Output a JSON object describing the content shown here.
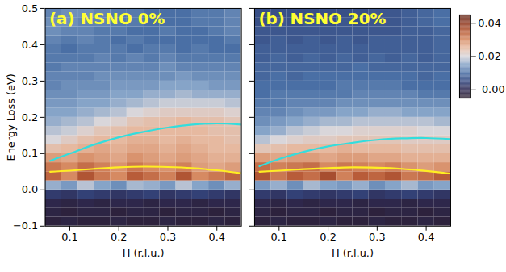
{
  "chart_data": [
    {
      "type": "heatmap",
      "title": "(a) NSNO 0%",
      "x_label": "H (r.l.u.)",
      "y_label": "Energy Loss (eV)",
      "xlim": [
        0.05,
        0.45
      ],
      "ylim": [
        -0.1,
        0.5
      ],
      "xticks": [
        0.1,
        0.2,
        0.3,
        0.4
      ],
      "yticks": [
        {
          "value": -0.1,
          "label": "−0.1"
        },
        {
          "value": 0,
          "label": "0.0"
        },
        0.1,
        0.2,
        0.3,
        0.4,
        0.5
      ],
      "h_bins": [
        0.05,
        0.0833,
        0.1167,
        0.15,
        0.1833,
        0.2167,
        0.25,
        0.2833,
        0.3167,
        0.35,
        0.3833,
        0.4167,
        0.45
      ],
      "energy_bins": [
        -0.1,
        -0.075,
        -0.05,
        -0.025,
        0,
        0.025,
        0.05,
        0.075,
        0.1,
        0.125,
        0.15,
        0.175,
        0.2,
        0.225,
        0.25,
        0.275,
        0.3,
        0.325,
        0.35,
        0.375,
        0.4,
        0.425,
        0.45,
        0.475,
        0.5
      ],
      "cells": [
        [
          -0.003,
          -0.002,
          -0.003,
          -0.003,
          -0.002,
          -0.003,
          -0.003,
          -0.002,
          -0.003,
          -0.003,
          -0.002,
          -0.003
        ],
        [
          -0.002,
          -0.003,
          -0.002,
          -0.002,
          -0.003,
          -0.002,
          -0.002,
          -0.003,
          -0.002,
          -0.002,
          -0.003,
          -0.002
        ],
        [
          -0.001,
          -0.002,
          -0.001,
          -0.002,
          -0.001,
          -0.001,
          -0.002,
          -0.001,
          -0.001,
          -0.002,
          -0.001,
          -0.001
        ],
        [
          0.003,
          0.002,
          0.004,
          0.003,
          0.002,
          0.003,
          0.004,
          0.002,
          0.003,
          0.004,
          0.003,
          0.002
        ],
        [
          0.016,
          0.014,
          0.018,
          0.015,
          0.013,
          0.017,
          0.016,
          0.014,
          0.018,
          0.015,
          0.013,
          0.016
        ],
        [
          0.034,
          0.03,
          0.036,
          0.032,
          0.03,
          0.035,
          0.033,
          0.031,
          0.036,
          0.03,
          0.032,
          0.034
        ],
        [
          0.032,
          0.03,
          0.033,
          0.031,
          0.029,
          0.032,
          0.03,
          0.029,
          0.031,
          0.028,
          0.027,
          0.028
        ],
        [
          0.028,
          0.027,
          0.029,
          0.028,
          0.027,
          0.029,
          0.028,
          0.027,
          0.028,
          0.027,
          0.026,
          0.026
        ],
        [
          0.024,
          0.025,
          0.026,
          0.027,
          0.026,
          0.027,
          0.027,
          0.026,
          0.027,
          0.026,
          0.025,
          0.025
        ],
        [
          0.02,
          0.022,
          0.024,
          0.025,
          0.025,
          0.026,
          0.026,
          0.025,
          0.026,
          0.025,
          0.025,
          0.024
        ],
        [
          0.018,
          0.019,
          0.021,
          0.023,
          0.024,
          0.025,
          0.025,
          0.025,
          0.025,
          0.025,
          0.024,
          0.024
        ],
        [
          0.016,
          0.017,
          0.018,
          0.02,
          0.021,
          0.023,
          0.024,
          0.024,
          0.025,
          0.024,
          0.024,
          0.023
        ],
        [
          0.015,
          0.015,
          0.016,
          0.017,
          0.018,
          0.02,
          0.021,
          0.022,
          0.022,
          0.022,
          0.022,
          0.021
        ],
        [
          0.014,
          0.014,
          0.015,
          0.015,
          0.016,
          0.017,
          0.018,
          0.019,
          0.019,
          0.019,
          0.019,
          0.018
        ],
        [
          0.013,
          0.013,
          0.014,
          0.014,
          0.015,
          0.015,
          0.016,
          0.016,
          0.017,
          0.016,
          0.016,
          0.016
        ],
        [
          0.012,
          0.013,
          0.013,
          0.013,
          0.014,
          0.014,
          0.014,
          0.015,
          0.015,
          0.015,
          0.014,
          0.014
        ],
        [
          0.012,
          0.012,
          0.012,
          0.013,
          0.013,
          0.013,
          0.013,
          0.013,
          0.014,
          0.013,
          0.013,
          0.013
        ],
        [
          0.011,
          0.012,
          0.012,
          0.012,
          0.012,
          0.012,
          0.012,
          0.013,
          0.012,
          0.012,
          0.012,
          0.012
        ],
        [
          0.011,
          0.011,
          0.011,
          0.012,
          0.011,
          0.012,
          0.011,
          0.012,
          0.011,
          0.011,
          0.011,
          0.011
        ],
        [
          0.011,
          0.01,
          0.011,
          0.011,
          0.011,
          0.01,
          0.011,
          0.011,
          0.01,
          0.011,
          0.01,
          0.01
        ],
        [
          0.012,
          0.011,
          0.012,
          0.011,
          0.01,
          0.011,
          0.01,
          0.01,
          0.01,
          0.01,
          0.01,
          0.011
        ],
        [
          0.013,
          0.012,
          0.012,
          0.011,
          0.011,
          0.01,
          0.01,
          0.011,
          0.01,
          0.01,
          0.011,
          0.012
        ],
        [
          0.013,
          0.013,
          0.012,
          0.012,
          0.011,
          0.011,
          0.01,
          0.01,
          0.01,
          0.011,
          0.011,
          0.012
        ],
        [
          0.012,
          0.013,
          0.013,
          0.012,
          0.011,
          0.011,
          0.01,
          0.01,
          0.01,
          0.011,
          0.011,
          0.012
        ]
      ],
      "curves": [
        {
          "color": "#33dddd",
          "x": [
            0.06,
            0.1,
            0.15,
            0.2,
            0.25,
            0.3,
            0.35,
            0.4,
            0.45
          ],
          "values": [
            0.08,
            0.1,
            0.125,
            0.145,
            0.16,
            0.172,
            0.18,
            0.183,
            0.18
          ]
        },
        {
          "color": "#ffee22",
          "x": [
            0.06,
            0.1,
            0.15,
            0.2,
            0.25,
            0.3,
            0.35,
            0.4,
            0.45
          ],
          "values": [
            0.05,
            0.053,
            0.058,
            0.062,
            0.064,
            0.063,
            0.06,
            0.054,
            0.046
          ]
        }
      ]
    },
    {
      "type": "heatmap",
      "title": "(b) NSNO 20%",
      "x_label": "H (r.l.u.)",
      "tick_labels": "x",
      "xlim": [
        0.05,
        0.45
      ],
      "ylim": [
        -0.1,
        0.5
      ],
      "xticks": [
        0.1,
        0.2,
        0.3,
        0.4
      ],
      "yticks": [
        -0.1,
        0,
        0.1,
        0.2,
        0.3,
        0.4,
        0.5
      ],
      "h_bins": [
        0.05,
        0.0833,
        0.1167,
        0.15,
        0.1833,
        0.2167,
        0.25,
        0.2833,
        0.3167,
        0.35,
        0.3833,
        0.4167,
        0.45
      ],
      "energy_bins": [
        -0.1,
        -0.075,
        -0.05,
        -0.025,
        0,
        0.025,
        0.05,
        0.075,
        0.1,
        0.125,
        0.15,
        0.175,
        0.2,
        0.225,
        0.25,
        0.275,
        0.3,
        0.325,
        0.35,
        0.375,
        0.4,
        0.425,
        0.45,
        0.475,
        0.5
      ],
      "cells": [
        [
          -0.003,
          -0.002,
          -0.003,
          -0.003,
          -0.002,
          -0.003,
          -0.003,
          -0.002,
          -0.003,
          -0.003,
          -0.002,
          -0.003
        ],
        [
          -0.002,
          -0.003,
          -0.002,
          -0.002,
          -0.003,
          -0.002,
          -0.002,
          -0.003,
          -0.002,
          -0.002,
          -0.003,
          -0.002
        ],
        [
          -0.001,
          -0.002,
          -0.001,
          -0.002,
          -0.001,
          -0.001,
          -0.002,
          -0.001,
          -0.001,
          -0.002,
          -0.001,
          -0.001
        ],
        [
          0.003,
          0.002,
          0.004,
          0.003,
          0.002,
          0.003,
          0.004,
          0.002,
          0.003,
          0.004,
          0.003,
          0.002
        ],
        [
          0.014,
          0.016,
          0.013,
          0.017,
          0.015,
          0.014,
          0.016,
          0.013,
          0.015,
          0.017,
          0.014,
          0.015
        ],
        [
          0.036,
          0.032,
          0.035,
          0.033,
          0.037,
          0.031,
          0.035,
          0.034,
          0.036,
          0.032,
          0.033,
          0.035
        ],
        [
          0.033,
          0.031,
          0.032,
          0.033,
          0.03,
          0.032,
          0.031,
          0.03,
          0.031,
          0.029,
          0.028,
          0.029
        ],
        [
          0.028,
          0.027,
          0.028,
          0.028,
          0.027,
          0.028,
          0.028,
          0.027,
          0.027,
          0.026,
          0.026,
          0.026
        ],
        [
          0.023,
          0.024,
          0.025,
          0.025,
          0.025,
          0.026,
          0.025,
          0.025,
          0.025,
          0.024,
          0.024,
          0.024
        ],
        [
          0.018,
          0.02,
          0.021,
          0.022,
          0.022,
          0.023,
          0.023,
          0.023,
          0.023,
          0.022,
          0.022,
          0.022
        ],
        [
          0.015,
          0.016,
          0.018,
          0.019,
          0.02,
          0.02,
          0.021,
          0.021,
          0.021,
          0.021,
          0.02,
          0.02
        ],
        [
          0.013,
          0.014,
          0.015,
          0.016,
          0.017,
          0.017,
          0.018,
          0.018,
          0.018,
          0.018,
          0.018,
          0.017
        ],
        [
          0.012,
          0.012,
          0.013,
          0.014,
          0.014,
          0.015,
          0.015,
          0.016,
          0.016,
          0.015,
          0.015,
          0.015
        ],
        [
          0.011,
          0.011,
          0.012,
          0.012,
          0.012,
          0.013,
          0.013,
          0.013,
          0.013,
          0.013,
          0.013,
          0.013
        ],
        [
          0.01,
          0.011,
          0.011,
          0.011,
          0.011,
          0.011,
          0.012,
          0.012,
          0.012,
          0.012,
          0.011,
          0.011
        ],
        [
          0.01,
          0.01,
          0.01,
          0.01,
          0.01,
          0.011,
          0.011,
          0.011,
          0.011,
          0.01,
          0.01,
          0.01
        ],
        [
          0.009,
          0.01,
          0.009,
          0.01,
          0.01,
          0.01,
          0.01,
          0.01,
          0.01,
          0.01,
          0.009,
          0.01
        ],
        [
          0.009,
          0.009,
          0.009,
          0.009,
          0.009,
          0.009,
          0.01,
          0.009,
          0.009,
          0.009,
          0.009,
          0.009
        ],
        [
          0.008,
          0.009,
          0.008,
          0.009,
          0.008,
          0.009,
          0.008,
          0.009,
          0.008,
          0.009,
          0.008,
          0.009
        ],
        [
          0.008,
          0.008,
          0.008,
          0.008,
          0.008,
          0.008,
          0.008,
          0.008,
          0.008,
          0.008,
          0.008,
          0.009
        ],
        [
          0.007,
          0.008,
          0.007,
          0.008,
          0.007,
          0.008,
          0.007,
          0.008,
          0.008,
          0.008,
          0.008,
          0.009
        ],
        [
          0.007,
          0.007,
          0.007,
          0.007,
          0.007,
          0.007,
          0.007,
          0.007,
          0.007,
          0.008,
          0.008,
          0.009
        ],
        [
          0.006,
          0.007,
          0.006,
          0.007,
          0.006,
          0.007,
          0.006,
          0.007,
          0.007,
          0.008,
          0.009,
          0.01
        ],
        [
          0.006,
          0.006,
          0.006,
          0.006,
          0.006,
          0.006,
          0.006,
          0.007,
          0.007,
          0.008,
          0.009,
          0.01
        ]
      ],
      "curves": [
        {
          "color": "#33dddd",
          "x": [
            0.06,
            0.1,
            0.15,
            0.2,
            0.25,
            0.3,
            0.35,
            0.4,
            0.45
          ],
          "values": [
            0.065,
            0.085,
            0.105,
            0.12,
            0.13,
            0.138,
            0.142,
            0.143,
            0.14
          ]
        },
        {
          "color": "#ffee22",
          "x": [
            0.06,
            0.1,
            0.15,
            0.2,
            0.25,
            0.3,
            0.35,
            0.4,
            0.45
          ],
          "values": [
            0.05,
            0.053,
            0.057,
            0.06,
            0.062,
            0.061,
            0.058,
            0.052,
            0.045
          ]
        }
      ],
      "colorbar": {
        "range": [
          -0.005,
          0.045
        ],
        "ticks": [
          {
            "value": 0,
            "label": "-0.00"
          },
          0.02,
          0.04
        ]
      }
    }
  ]
}
